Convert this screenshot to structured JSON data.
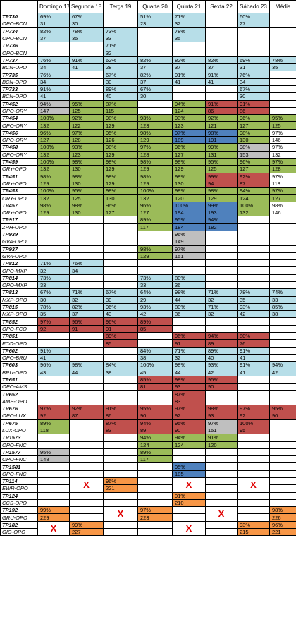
{
  "header": [
    "Domingo 17",
    "Segunda 18",
    "Terça 19",
    "Quarta 20",
    "Quinta 21",
    "Sexta 22",
    "Sábado 23",
    "Média"
  ],
  "flights": [
    {
      "code": "TP730",
      "route": "OPO-BCN",
      "pct": [
        "69%",
        "67%",
        null,
        "51%",
        "71%",
        null,
        "60%",
        null
      ],
      "num": [
        31,
        30,
        null,
        23,
        32,
        null,
        27,
        null
      ],
      "colors": [
        "#b7dee8",
        "#b7dee8",
        null,
        "#b7dee8",
        "#b7dee8",
        null,
        "#b7dee8",
        null
      ]
    },
    {
      "code": "TP734",
      "route": "OPO-BCN",
      "pct": [
        "82%",
        "78%",
        "73%",
        null,
        "78%",
        null,
        null,
        null
      ],
      "num": [
        37,
        35,
        33,
        null,
        35,
        null,
        null,
        null
      ],
      "colors": [
        "#b7dee8",
        "#b7dee8",
        "#b7dee8",
        null,
        "#b7dee8",
        null,
        null,
        null
      ]
    },
    {
      "code": "TP736",
      "route": "OPO-BCN",
      "pct": [
        null,
        null,
        "71%",
        null,
        null,
        null,
        null,
        null
      ],
      "num": [
        null,
        null,
        32,
        null,
        null,
        null,
        null,
        null
      ],
      "colors": [
        null,
        null,
        "#b7dee8",
        null,
        null,
        null,
        null,
        null
      ]
    },
    {
      "code": "TP737",
      "route": "BCN-OPO",
      "pct": [
        "76%",
        "91%",
        "62%",
        "82%",
        "82%",
        "82%",
        "69%",
        "78%"
      ],
      "num": [
        34,
        41,
        28,
        37,
        37,
        37,
        31,
        35
      ],
      "colors": [
        "#b7dee8",
        "#b7dee8",
        "#b7dee8",
        "#b7dee8",
        "#b7dee8",
        "#b7dee8",
        "#b7dee8",
        "#b7dee8"
      ]
    },
    {
      "code": "TP735",
      "route": "BCN-OPO",
      "pct": [
        "76%",
        null,
        "67%",
        "82%",
        "91%",
        "91%",
        "76%",
        null
      ],
      "num": [
        34,
        null,
        30,
        37,
        41,
        41,
        34,
        null
      ],
      "colors": [
        "#b7dee8",
        null,
        "#b7dee8",
        "#b7dee8",
        "#b7dee8",
        "#b7dee8",
        "#b7dee8",
        null
      ]
    },
    {
      "code": "TP733",
      "route": "BCN-OPO",
      "pct": [
        "91%",
        null,
        "89%",
        "67%",
        null,
        null,
        "67%",
        null
      ],
      "num": [
        41,
        null,
        40,
        30,
        null,
        null,
        30,
        null
      ],
      "colors": [
        "#b7dee8",
        null,
        "#b7dee8",
        "#b7dee8",
        null,
        null,
        "#b7dee8",
        null
      ]
    },
    {
      "code": "TP452",
      "route": "OPO-ORY",
      "pct": [
        "94%",
        "95%",
        "87%",
        null,
        "94%",
        "91%",
        "91%",
        null
      ],
      "num": [
        147,
        125,
        115,
        null,
        124,
        86,
        86,
        null
      ],
      "colors": [
        "#bfbfbf",
        "#9bbb59",
        "#9bbb59",
        null,
        "#9bbb59",
        "#c0504d",
        "#c0504d",
        null
      ]
    },
    {
      "code": "TP454",
      "route": "OPO-ORY",
      "pct": [
        "100%",
        "92%",
        "98%",
        "93%",
        "93%",
        "92%",
        "96%",
        "95%"
      ],
      "num": [
        132,
        122,
        129,
        123,
        123,
        121,
        127,
        125
      ],
      "colors": [
        "#9bbb59",
        "#9bbb59",
        "#9bbb59",
        "#9bbb59",
        "#9bbb59",
        "#9bbb59",
        "#9bbb59",
        "#9bbb59"
      ]
    },
    {
      "code": "TP456",
      "route": "OPO-ORY",
      "pct": [
        "96%",
        "97%",
        "95%",
        "98%",
        "97%",
        "98%",
        "98%",
        "97%"
      ],
      "num": [
        127,
        128,
        126,
        129,
        189,
        191,
        130,
        146
      ],
      "colors": [
        "#9bbb59",
        "#9bbb59",
        "#9bbb59",
        "#9bbb59",
        "#4f81bd",
        "#4f81bd",
        "#9bbb59",
        null
      ]
    },
    {
      "code": "TP458",
      "route": "OPO-ORY",
      "pct": [
        "100%",
        "93%",
        "98%",
        "97%",
        "96%",
        "99%",
        "98%",
        "97%"
      ],
      "num": [
        132,
        123,
        129,
        128,
        127,
        131,
        153,
        132
      ],
      "colors": [
        "#9bbb59",
        "#9bbb59",
        "#9bbb59",
        "#9bbb59",
        "#9bbb59",
        "#9bbb59",
        "#bfbfbf",
        null
      ]
    },
    {
      "code": "TP459",
      "route": "ORY-OPO",
      "pct": [
        "100%",
        "98%",
        "98%",
        "98%",
        "98%",
        "95%",
        "96%",
        "97%"
      ],
      "num": [
        132,
        130,
        129,
        129,
        129,
        125,
        127,
        128
      ],
      "colors": [
        "#9bbb59",
        "#9bbb59",
        "#9bbb59",
        "#9bbb59",
        "#9bbb59",
        "#9bbb59",
        "#9bbb59",
        "#9bbb59"
      ]
    },
    {
      "code": "TP451",
      "route": "ORY-OPO",
      "pct": [
        "98%",
        "98%",
        "98%",
        "98%",
        "98%",
        "99%",
        "92%",
        "97%"
      ],
      "num": [
        129,
        130,
        129,
        129,
        130,
        94,
        87,
        118
      ],
      "colors": [
        "#9bbb59",
        "#9bbb59",
        "#9bbb59",
        "#9bbb59",
        "#9bbb59",
        "#c0504d",
        "#c0504d",
        null
      ]
    },
    {
      "code": "TP453",
      "route": "ORY-OPO",
      "pct": [
        "100%",
        "95%",
        "98%",
        "100%",
        "98%",
        "98%",
        "94%",
        "97%"
      ],
      "num": [
        132,
        125,
        130,
        132,
        120,
        129,
        124,
        127
      ],
      "colors": [
        "#9bbb59",
        "#9bbb59",
        "#9bbb59",
        "#9bbb59",
        "#9bbb59",
        "#9bbb59",
        "#9bbb59",
        "#9bbb59"
      ]
    },
    {
      "code": "TP457",
      "route": "ORY-OPO",
      "pct": [
        "98%",
        "98%",
        "96%",
        "96%",
        "100%",
        "99%",
        "100%",
        "98%"
      ],
      "num": [
        129,
        130,
        127,
        127,
        194,
        193,
        132,
        146
      ],
      "colors": [
        "#9bbb59",
        "#9bbb59",
        "#9bbb59",
        "#9bbb59",
        "#4f81bd",
        "#4f81bd",
        "#9bbb59",
        null
      ]
    },
    {
      "code": "TP917",
      "route": "ZRH-OPO",
      "pct": [
        null,
        null,
        null,
        "89%",
        "95%",
        "94%",
        null,
        null
      ],
      "num": [
        null,
        null,
        null,
        117,
        184,
        182,
        null,
        null
      ],
      "colors": [
        null,
        null,
        null,
        "#9bbb59",
        "#4f81bd",
        "#4f81bd",
        null,
        null
      ]
    },
    {
      "code": "TP939",
      "route": "GVA-OPO",
      "pct": [
        null,
        null,
        null,
        null,
        "96%",
        null,
        null,
        null
      ],
      "num": [
        null,
        null,
        null,
        null,
        149,
        null,
        null,
        null
      ],
      "colors": [
        null,
        null,
        null,
        null,
        "#bfbfbf",
        null,
        null,
        null
      ]
    },
    {
      "code": "TP937",
      "route": "GVA-OPO",
      "pct": [
        null,
        null,
        null,
        "98%",
        "97%",
        null,
        null,
        null
      ],
      "num": [
        null,
        null,
        null,
        129,
        151,
        null,
        null,
        null
      ],
      "colors": [
        null,
        null,
        null,
        "#9bbb59",
        "#bfbfbf",
        null,
        null,
        null
      ]
    },
    {
      "code": "TP812",
      "route": "OPO-MXP",
      "pct": [
        "71%",
        "76%",
        null,
        null,
        null,
        null,
        null,
        null
      ],
      "num": [
        32,
        34,
        null,
        null,
        null,
        null,
        null,
        null
      ],
      "colors": [
        "#b7dee8",
        "#b7dee8",
        null,
        null,
        null,
        null,
        null,
        null
      ]
    },
    {
      "code": "TP814",
      "route": "OPO-MXP",
      "pct": [
        "73%",
        null,
        null,
        "73%",
        "80%",
        null,
        null,
        null
      ],
      "num": [
        33,
        null,
        null,
        33,
        36,
        null,
        null,
        null
      ],
      "colors": [
        "#b7dee8",
        null,
        null,
        "#b7dee8",
        "#b7dee8",
        null,
        null,
        null
      ]
    },
    {
      "code": "TP813",
      "route": "MXP-OPO",
      "pct": [
        "67%",
        "71%",
        "67%",
        "64%",
        "98%",
        "71%",
        "78%",
        "74%"
      ],
      "num": [
        30,
        32,
        30,
        29,
        44,
        32,
        35,
        33
      ],
      "colors": [
        "#b7dee8",
        "#b7dee8",
        "#b7dee8",
        "#b7dee8",
        "#b7dee8",
        "#b7dee8",
        "#b7dee8",
        "#b7dee8"
      ]
    },
    {
      "code": "TP815",
      "route": "MXP-OPO",
      "pct": [
        "78%",
        "82%",
        "96%",
        "93%",
        "80%",
        "71%",
        "93%",
        "85%"
      ],
      "num": [
        35,
        37,
        43,
        42,
        36,
        32,
        42,
        38
      ],
      "colors": [
        "#b7dee8",
        "#b7dee8",
        "#b7dee8",
        "#b7dee8",
        "#b7dee8",
        "#b7dee8",
        "#b7dee8",
        "#b7dee8"
      ]
    },
    {
      "code": "TP852",
      "route": "OPO-FCO",
      "pct": [
        "97%",
        "96%",
        "96%",
        "89%",
        null,
        null,
        null,
        null
      ],
      "num": [
        92,
        91,
        91,
        85,
        null,
        null,
        null,
        null
      ],
      "colors": [
        "#c0504d",
        "#c0504d",
        "#c0504d",
        "#c0504d",
        null,
        null,
        null,
        null
      ]
    },
    {
      "code": "TP851",
      "route": "FCO-OPO",
      "pct": [
        null,
        null,
        "89%",
        null,
        "96%",
        "94%",
        "80%",
        null
      ],
      "num": [
        null,
        null,
        85,
        null,
        91,
        89,
        76,
        null
      ],
      "colors": [
        null,
        null,
        "#c0504d",
        null,
        "#c0504d",
        "#c0504d",
        "#c0504d",
        null
      ]
    },
    {
      "code": "TP602",
      "route": "OPO-BRU",
      "pct": [
        "91%",
        null,
        null,
        "84%",
        "71%",
        "89%",
        "91%",
        null
      ],
      "num": [
        41,
        null,
        null,
        38,
        32,
        40,
        41,
        null
      ],
      "colors": [
        "#b7dee8",
        null,
        null,
        "#b7dee8",
        "#b7dee8",
        "#b7dee8",
        "#b7dee8",
        null
      ]
    },
    {
      "code": "TP603",
      "route": "BRU-OPO",
      "pct": [
        "96%",
        "98%",
        "84%",
        "100%",
        "98%",
        "93%",
        "91%",
        "94%"
      ],
      "num": [
        43,
        44,
        38,
        45,
        44,
        42,
        41,
        42
      ],
      "colors": [
        "#b7dee8",
        "#b7dee8",
        "#b7dee8",
        "#b7dee8",
        "#b7dee8",
        "#b7dee8",
        "#b7dee8",
        "#b7dee8"
      ]
    },
    {
      "code": "TP651",
      "route": "OPO-AMS",
      "pct": [
        null,
        null,
        null,
        "85%",
        "98%",
        "95%",
        null,
        null
      ],
      "num": [
        null,
        null,
        null,
        81,
        93,
        90,
        null,
        null
      ],
      "colors": [
        null,
        null,
        null,
        "#c0504d",
        "#c0504d",
        "#c0504d",
        null,
        null
      ]
    },
    {
      "code": "TP652",
      "route": "AMS-OPO",
      "pct": [
        null,
        null,
        null,
        null,
        "87%",
        null,
        null,
        null
      ],
      "num": [
        null,
        null,
        null,
        null,
        83,
        null,
        null,
        null
      ],
      "colors": [
        null,
        null,
        null,
        null,
        "#c0504d",
        null,
        null,
        null
      ]
    },
    {
      "code": "TP676",
      "route": "OPO-LUX",
      "pct": [
        "97%",
        "92%",
        "91%",
        "95%",
        "97%",
        "98%",
        "97%",
        "95%"
      ],
      "num": [
        92,
        87,
        86,
        90,
        92,
        93,
        92,
        90
      ],
      "colors": [
        "#c0504d",
        "#c0504d",
        "#c0504d",
        "#c0504d",
        "#c0504d",
        "#c0504d",
        "#c0504d",
        "#c0504d"
      ]
    },
    {
      "code": "TP675",
      "route": "LUX-OPO",
      "pct": [
        "89%",
        null,
        "87%",
        "94%",
        "95%",
        "97%",
        "100%",
        null
      ],
      "num": [
        118,
        null,
        83,
        89,
        90,
        151,
        95,
        null
      ],
      "colors": [
        "#9bbb59",
        null,
        "#c0504d",
        "#c0504d",
        "#c0504d",
        "#bfbfbf",
        "#c0504d",
        null
      ]
    },
    {
      "code": "TP1573",
      "route": "OPO-FNC",
      "pct": [
        null,
        null,
        null,
        "94%",
        "94%",
        "91%",
        null,
        null
      ],
      "num": [
        null,
        null,
        null,
        124,
        124,
        120,
        null,
        null
      ],
      "colors": [
        null,
        null,
        null,
        "#9bbb59",
        "#9bbb59",
        "#9bbb59",
        null,
        null
      ]
    },
    {
      "code": "TP1577",
      "route": "OPO-FNC",
      "pct": [
        "95%",
        null,
        null,
        "89%",
        null,
        null,
        null,
        null
      ],
      "num": [
        148,
        null,
        null,
        117,
        null,
        null,
        null,
        null
      ],
      "colors": [
        "#bfbfbf",
        null,
        null,
        "#9bbb59",
        null,
        null,
        null,
        null
      ]
    },
    {
      "code": "TP1581",
      "route": "OPO-FNC",
      "pct": [
        null,
        null,
        null,
        null,
        "95%",
        null,
        null,
        null
      ],
      "num": [
        null,
        null,
        null,
        null,
        185,
        null,
        null,
        null
      ],
      "colors": [
        null,
        null,
        null,
        null,
        "#4f81bd",
        null,
        null,
        null
      ]
    },
    {
      "code": "TP114",
      "route": "EWR-OPO",
      "pct": [
        null,
        "X",
        "96%",
        null,
        "X",
        null,
        "X",
        null
      ],
      "num": [
        null,
        null,
        221,
        null,
        null,
        null,
        null,
        null
      ],
      "colors": [
        null,
        null,
        "#f79646",
        null,
        null,
        null,
        null,
        null
      ]
    },
    {
      "code": "TP124",
      "route": "CCS-OPO",
      "pct": [
        null,
        null,
        null,
        null,
        "91%",
        null,
        null,
        null
      ],
      "num": [
        null,
        null,
        null,
        null,
        210,
        null,
        null,
        null
      ],
      "colors": [
        null,
        null,
        null,
        null,
        "#f79646",
        null,
        null,
        null
      ]
    },
    {
      "code": "TP192",
      "route": "GRU-OPO",
      "pct": [
        "99%",
        null,
        "X",
        "97%",
        null,
        "X",
        null,
        "98%"
      ],
      "num": [
        229,
        null,
        null,
        223,
        null,
        null,
        null,
        226
      ],
      "colors": [
        "#f79646",
        null,
        null,
        "#f79646",
        null,
        null,
        null,
        "#f79646"
      ]
    },
    {
      "code": "TP182",
      "route": "GIG-OPO",
      "pct": [
        "X",
        "99%",
        null,
        null,
        "X",
        null,
        "93%",
        "96%"
      ],
      "num": [
        null,
        227,
        null,
        null,
        null,
        null,
        215,
        221
      ],
      "colors": [
        null,
        "#f79646",
        null,
        null,
        null,
        null,
        "#f79646",
        "#f79646"
      ]
    }
  ]
}
